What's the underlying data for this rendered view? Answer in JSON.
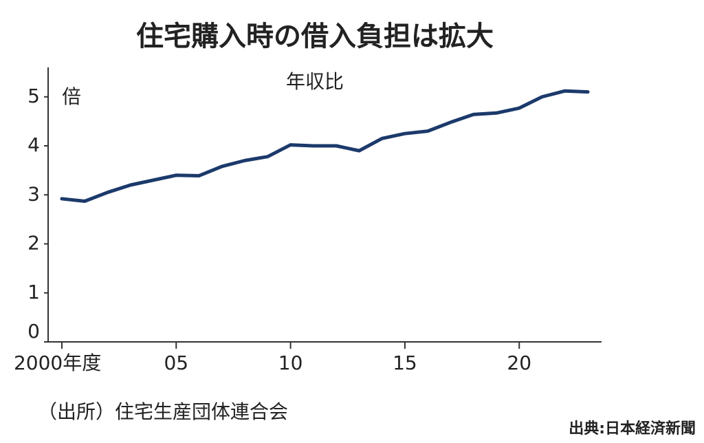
{
  "chart_data": {
    "type": "line",
    "title": "住宅購入時の借入負担は拡大",
    "subtitle": "年収比",
    "y_unit": "倍",
    "source": "（出所）住宅生産団体連合会",
    "credit": "出典:日本経済新聞",
    "x": [
      2000,
      2001,
      2002,
      2003,
      2004,
      2005,
      2006,
      2007,
      2008,
      2009,
      2010,
      2011,
      2012,
      2013,
      2014,
      2015,
      2016,
      2017,
      2018,
      2019,
      2020,
      2021,
      2022,
      2023
    ],
    "series": [
      {
        "name": "年収比",
        "color": "#1c3a6b",
        "values": [
          2.92,
          2.87,
          3.05,
          3.2,
          3.3,
          3.4,
          3.39,
          3.58,
          3.7,
          3.78,
          4.02,
          4.0,
          4.0,
          3.9,
          4.15,
          4.25,
          4.3,
          4.48,
          4.64,
          4.67,
          4.77,
          5.0,
          5.12,
          5.1
        ]
      }
    ],
    "xlim": [
      1999.4,
      2023.6
    ],
    "xticks": [
      {
        "value": 2000,
        "label": "2000年度"
      },
      {
        "value": 2005,
        "label": "05"
      },
      {
        "value": 2010,
        "label": "10"
      },
      {
        "value": 2015,
        "label": "15"
      },
      {
        "value": 2020,
        "label": "20"
      }
    ],
    "ylim": [
      0,
      5.6
    ],
    "yticks": [
      0,
      1,
      2,
      3,
      4,
      5
    ]
  }
}
